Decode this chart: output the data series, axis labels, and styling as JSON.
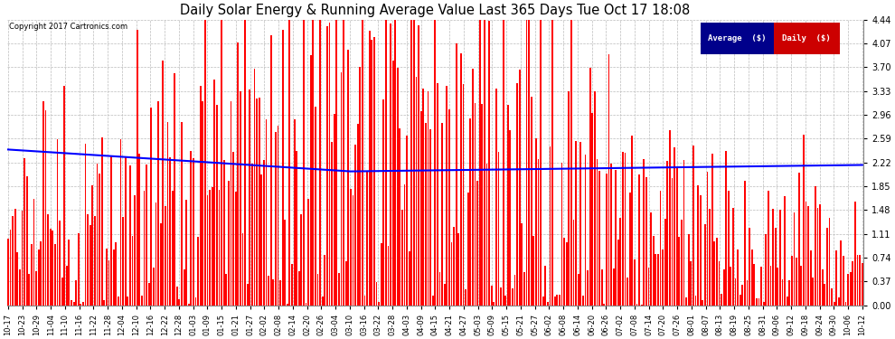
{
  "title": "Daily Solar Energy & Running Average Value Last 365 Days Tue Oct 17 18:08",
  "copyright": "Copyright 2017 Cartronics.com",
  "yticks": [
    0.0,
    0.37,
    0.74,
    1.11,
    1.48,
    1.85,
    2.22,
    2.59,
    2.96,
    3.33,
    3.7,
    4.07,
    4.44
  ],
  "ymax": 4.44,
  "bar_color": "#FF0000",
  "avg_color": "#0000FF",
  "background_color": "#FFFFFF",
  "grid_color": "#BBBBBB",
  "legend_avg_bg": "#00008B",
  "legend_daily_bg": "#CC0000",
  "legend_text_color": "#FFFFFF",
  "title_color": "#000000",
  "num_days": 365,
  "xtick_labels": [
    "10-17",
    "10-23",
    "10-29",
    "11-04",
    "11-10",
    "11-16",
    "11-22",
    "11-28",
    "12-04",
    "12-10",
    "12-16",
    "12-22",
    "12-28",
    "01-03",
    "01-09",
    "01-15",
    "01-21",
    "01-27",
    "02-02",
    "02-08",
    "02-14",
    "02-20",
    "02-26",
    "03-04",
    "03-10",
    "03-16",
    "03-22",
    "03-28",
    "04-03",
    "04-09",
    "04-15",
    "04-21",
    "04-27",
    "05-03",
    "05-09",
    "05-15",
    "05-21",
    "05-27",
    "06-02",
    "06-08",
    "06-14",
    "06-20",
    "06-26",
    "07-02",
    "07-08",
    "07-14",
    "07-20",
    "07-26",
    "08-01",
    "08-07",
    "08-13",
    "08-19",
    "08-25",
    "08-31",
    "09-06",
    "09-12",
    "09-18",
    "09-24",
    "09-30",
    "10-06",
    "10-12"
  ]
}
